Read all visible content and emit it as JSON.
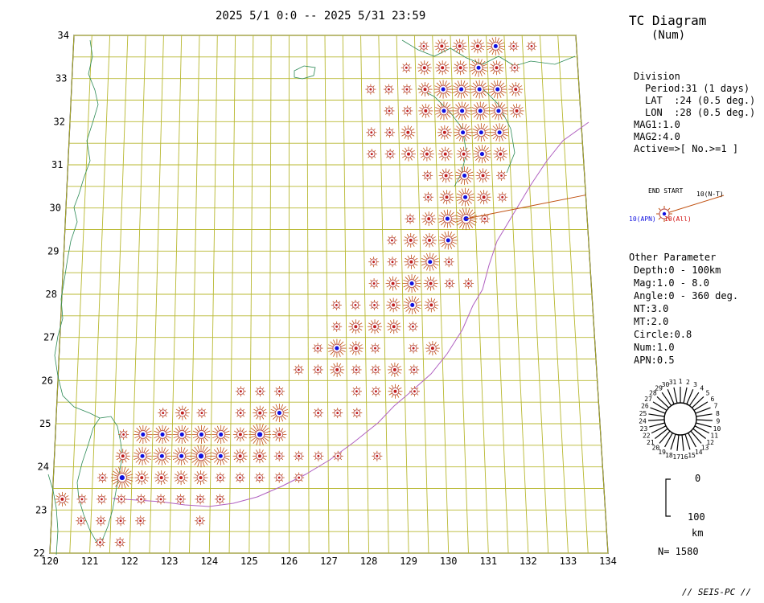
{
  "header": {
    "period_title": "2025 5/1 0:0 -- 2025 5/31 23:59"
  },
  "diagram": {
    "title": "TC Diagram",
    "subtitle": "(Num)"
  },
  "map": {
    "lat_labels": [
      "34",
      "33",
      "32",
      "31",
      "30",
      "29",
      "28",
      "27",
      "26",
      "25",
      "24",
      "23",
      "22"
    ],
    "lon_labels": [
      "120",
      "121",
      "122",
      "123",
      "124",
      "125",
      "126",
      "127",
      "128",
      "129",
      "130",
      "131",
      "132",
      "133",
      "134"
    ],
    "colors": {
      "grid": "#b8b830",
      "coast": "#2e8b57",
      "trench": "#b060c0",
      "marker_ring": "#c06060",
      "dot": "#1010e0",
      "rays": "#c05010"
    }
  },
  "division": {
    "heading": "Division",
    "period": "Period:31 (1 days)",
    "lat": "LAT  :24 (0.5 deg.)",
    "lon": "LON  :28 (0.5 deg.)",
    "mag1": "MAG1:1.0",
    "mag2": "MAG2:4.0",
    "active": "Active=>[ No.>=1 ]"
  },
  "legend": {
    "end_start": "END START",
    "nt": "10(N-T)",
    "apn": "10(APN)",
    "all": "10(All)"
  },
  "other": {
    "heading": "Other Parameter",
    "depth": "Depth:0 - 100km",
    "mag": "Mag:1.0 - 8.0",
    "angle": "Angle:0 - 360 deg.",
    "nt": "NT:3.0",
    "mt": "MT:2.0",
    "circle": "Circle:0.8",
    "num": "Num:1.0",
    "apn": "APN:0.5"
  },
  "rose": {
    "numbers": [
      "1",
      "2",
      "3",
      "4",
      "5",
      "6",
      "7",
      "8",
      "9",
      "10",
      "11",
      "12",
      "13",
      "14",
      "15",
      "16",
      "17",
      "18",
      "19",
      "20",
      "21",
      "22",
      "23",
      "24",
      "25",
      "26",
      "27",
      "28",
      "29",
      "30",
      "31"
    ]
  },
  "scale": {
    "top": "0",
    "bottom": "100",
    "unit": "km"
  },
  "count": "N= 1580",
  "footer": "// SEIS-PC //"
}
